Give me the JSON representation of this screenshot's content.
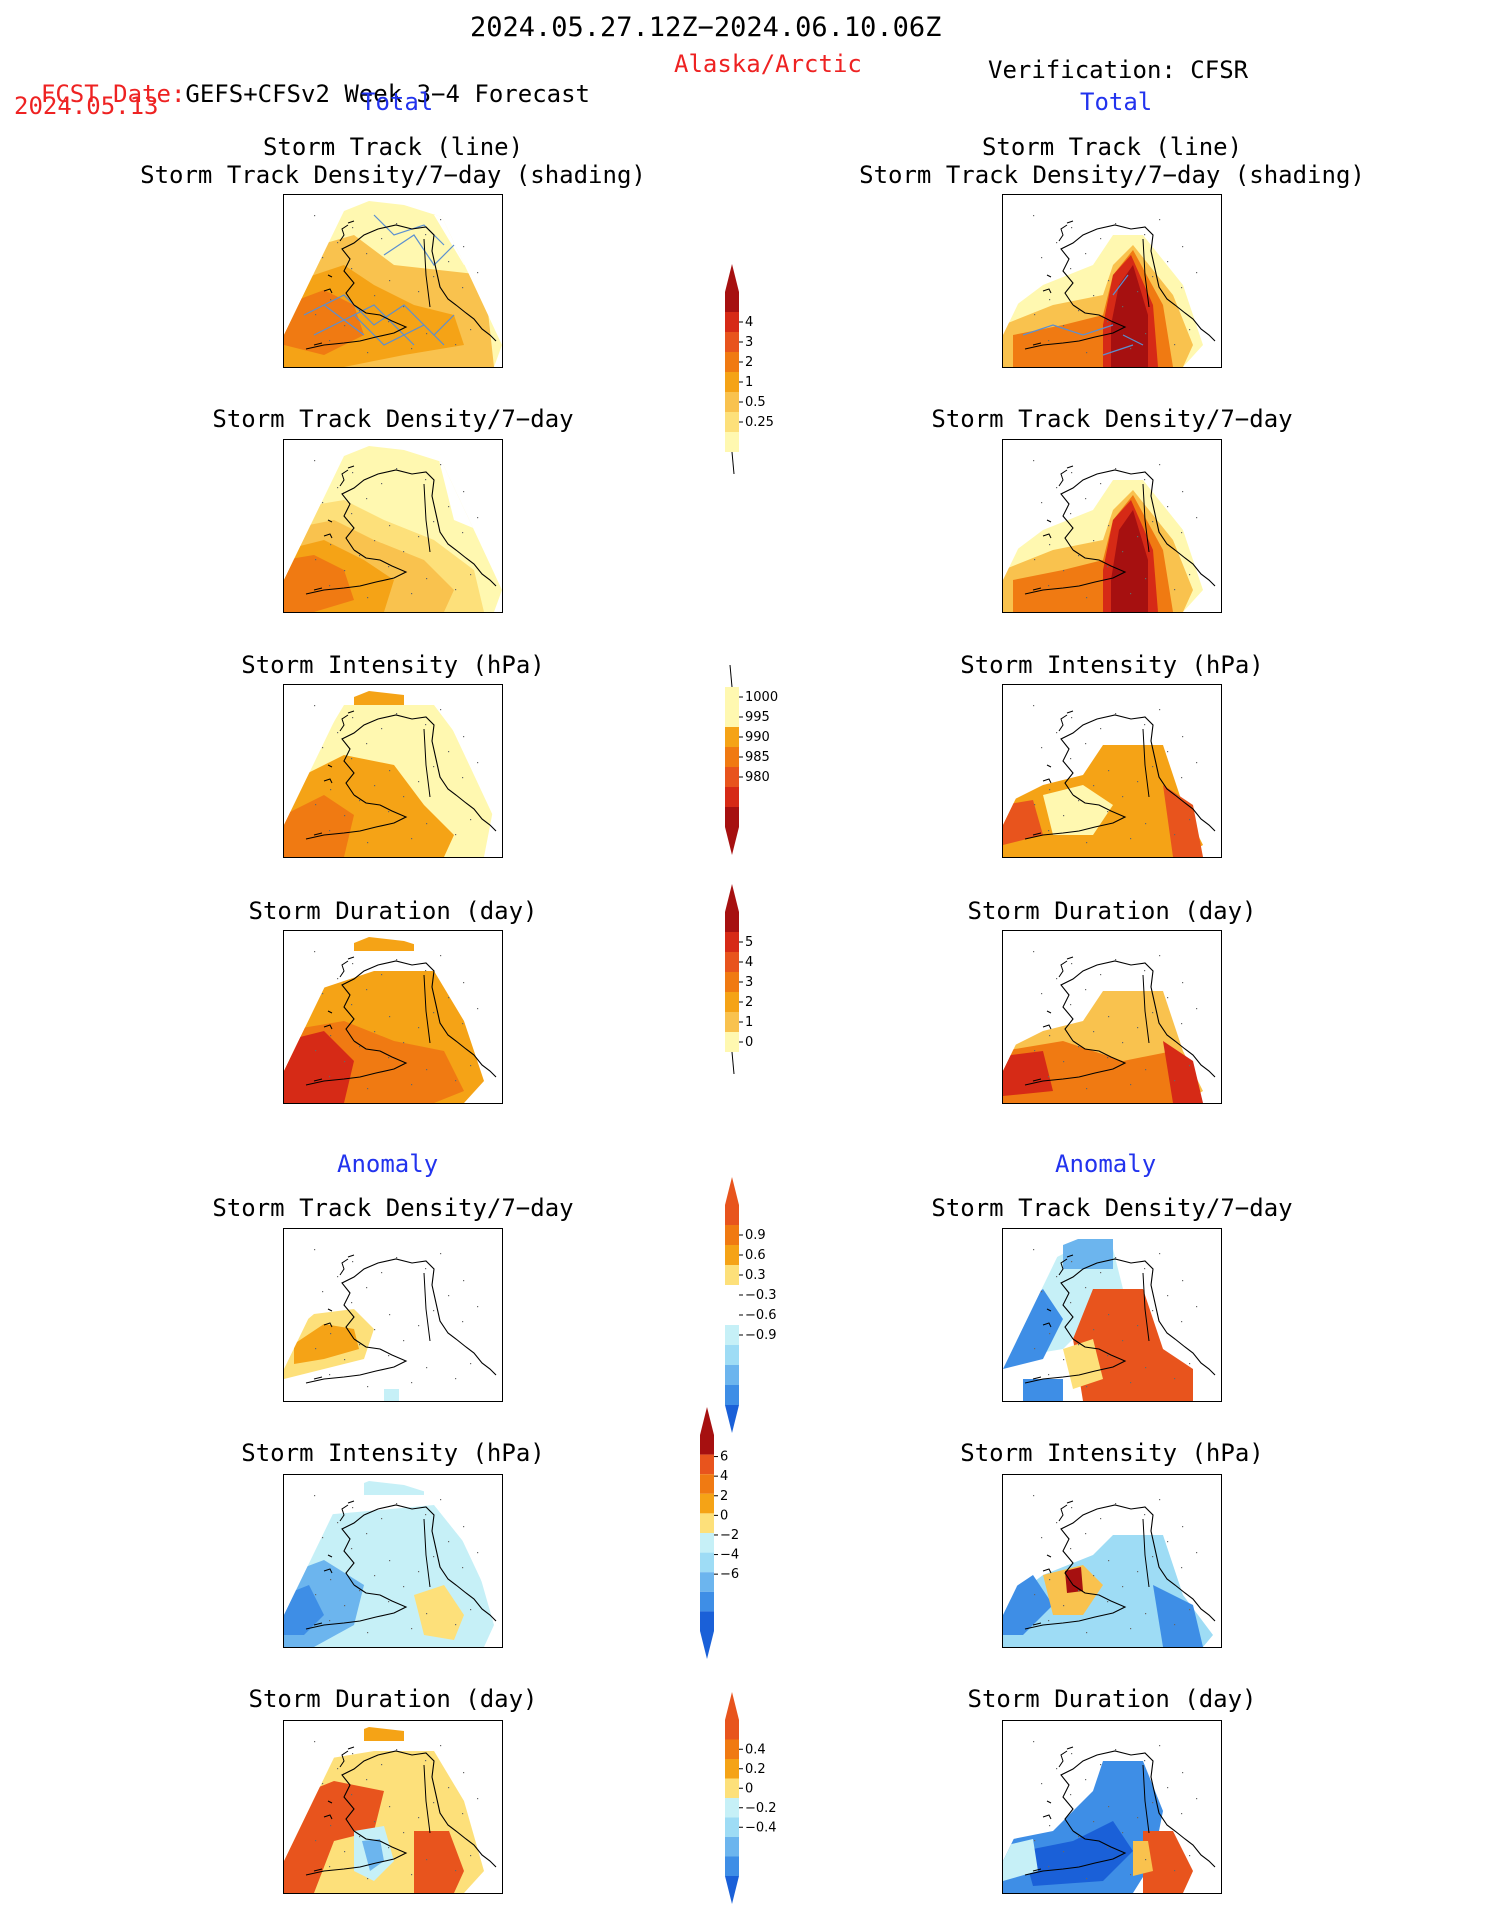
{
  "header": {
    "period": "2024.05.27.12Z−2024.06.10.06Z",
    "fcst_label": "FCST Date:",
    "fcst_model": "GEFS+CFSv2 Week 3−4 Forecast",
    "fcst_date": "2024.05.13",
    "region": "Alaska/Arctic",
    "verification": "Verification: CFSR"
  },
  "sections": {
    "total": "Total",
    "anomaly": "Anomaly"
  },
  "panel_titles": {
    "track_line": "Storm Track (line)",
    "track_shading": "Storm Track Density/7−day (shading)",
    "density": "Storm Track Density/7−day",
    "intensity": "Storm Intensity (hPa)",
    "duration": "Storm Duration (day)"
  },
  "colors": {
    "c1": "#fff8b0",
    "c2": "#fde07a",
    "c3": "#f9c24e",
    "c4": "#f5a316",
    "c5": "#f07a12",
    "c6": "#e8541d",
    "c7": "#d62a16",
    "c8": "#a61010",
    "b1": "#c6f0f7",
    "b2": "#9edcf5",
    "b3": "#6cb5ee",
    "b4": "#3e8ee6",
    "b5": "#1a60d8",
    "track": "#5b8fd0"
  },
  "chart_data": [
    {
      "type": "heatmap",
      "name": "track-density-total-legend",
      "levels": [
        0.25,
        0.5,
        1,
        2,
        3,
        4
      ],
      "labels": [
        "0.25",
        "0.5",
        "1",
        "2",
        "3",
        "4"
      ]
    },
    {
      "type": "heatmap",
      "name": "intensity-total-legend",
      "levels": [
        1000,
        995,
        990,
        985,
        980
      ],
      "labels": [
        "1000",
        "995",
        "990",
        "985",
        "980"
      ]
    },
    {
      "type": "heatmap",
      "name": "duration-total-legend",
      "levels": [
        0,
        1,
        2,
        3,
        4,
        5
      ],
      "labels": [
        "0",
        "1",
        "2",
        "3",
        "4",
        "5"
      ]
    },
    {
      "type": "heatmap",
      "name": "density-anomaly-legend",
      "levels": [
        -0.9,
        -0.6,
        -0.3,
        0.3,
        0.6,
        0.9
      ],
      "labels": [
        "−0.9",
        "−0.6",
        "−0.3",
        "0.3",
        "0.6",
        "0.9"
      ]
    },
    {
      "type": "heatmap",
      "name": "intensity-anomaly-legend",
      "levels": [
        -6,
        -4,
        -2,
        0,
        2,
        4,
        6
      ],
      "labels": [
        "−6",
        "−4",
        "−2",
        "0",
        "2",
        "4",
        "6"
      ]
    },
    {
      "type": "heatmap",
      "name": "duration-anomaly-legend",
      "levels": [
        -0.4,
        -0.2,
        0,
        0.2,
        0.4
      ],
      "labels": [
        "−0.4",
        "−0.2",
        "0",
        "0.2",
        "0.4"
      ]
    }
  ]
}
